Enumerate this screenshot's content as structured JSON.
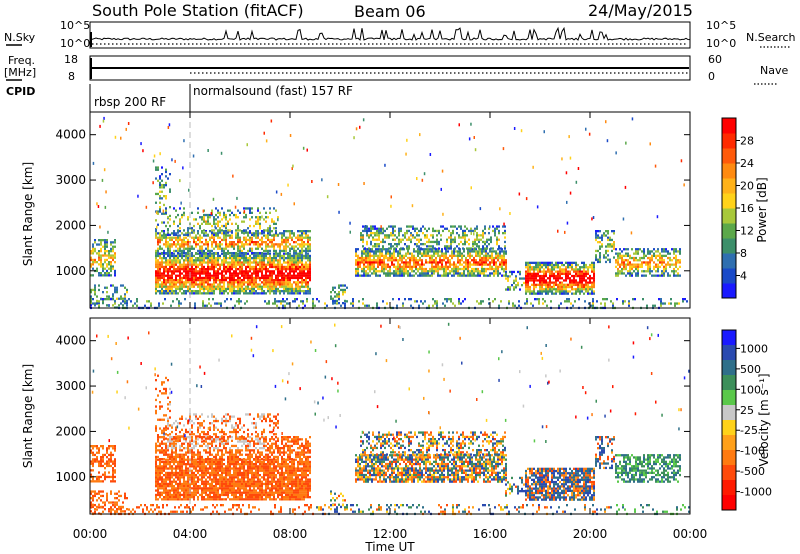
{
  "header": {
    "station": "South Pole Station (fitACF)",
    "beam": "Beam 06",
    "date": "24/May/2015"
  },
  "side_labels": {
    "nsky": "N.Sky",
    "nsky_top": "10^5",
    "nsky_bottom": "10^0",
    "nsearch": "N.Search",
    "nsearch_top": "10^5",
    "nsearch_bottom": "10^0",
    "freq": "Freq.",
    "freq_unit": "[MHz]",
    "freq_top": "18",
    "freq_bottom": "8",
    "nave": "Nave",
    "nave_top": "60",
    "nave_bottom": "0",
    "cpid": "CPID"
  },
  "cpid_segments": [
    {
      "label": "rbsp 200 RF"
    },
    {
      "label": "normalsound (fast) 157 RF"
    }
  ],
  "chart_data": [
    {
      "type": "heatmap",
      "title": "",
      "quantity": "Power",
      "ylabel": "Slant Range [km]",
      "xlabel": "",
      "ylim": [
        180,
        4500
      ],
      "yticks": [
        1000,
        2000,
        3000,
        4000
      ],
      "xticks": [
        "00:00",
        "04:00",
        "08:00",
        "12:00",
        "16:00",
        "20:00",
        "00:00"
      ],
      "colorbar": {
        "label": "Power [dB]",
        "ticks": [
          "4",
          "8",
          "12",
          "16",
          "20",
          "24",
          "28"
        ],
        "colors": [
          "#1a1aff",
          "#1a4ac8",
          "#2f6fb0",
          "#3c8f6a",
          "#5ba84a",
          "#a8c83a",
          "#ffd21a",
          "#ffb21a",
          "#ff8a10",
          "#ff5a0a",
          "#ff2a00",
          "#ff0000"
        ]
      }
    },
    {
      "type": "heatmap",
      "title": "",
      "quantity": "Velocity",
      "ylabel": "Slant Range [km]",
      "xlabel": "Time UT",
      "ylim": [
        180,
        4500
      ],
      "yticks": [
        1000,
        2000,
        3000,
        4000
      ],
      "xticks": [
        "00:00",
        "04:00",
        "08:00",
        "12:00",
        "16:00",
        "20:00",
        "00:00"
      ],
      "colorbar": {
        "label": "Velocity [m s⁻¹]",
        "ticks": [
          "1000",
          "500",
          "100",
          "25",
          "-25",
          "-100",
          "-500",
          "-1000"
        ],
        "colors": [
          "#1a1aff",
          "#2a4ab0",
          "#2f6f8a",
          "#3c8f5a",
          "#5ac84a",
          "#c8c8c8",
          "#ffd21a",
          "#ffa01a",
          "#ff7a10",
          "#ff4a0a",
          "#ff1a00",
          "#ff0000"
        ]
      }
    }
  ]
}
